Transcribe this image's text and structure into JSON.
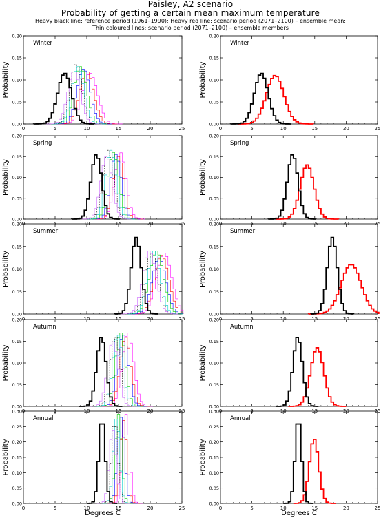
{
  "header": {
    "title_line1": "Paisley, A2 scenario",
    "title_line2": "Probability of getting a certain mean maximum temperature",
    "legend_line1": "Heavy black line: reference period (1961–1990); Heavy red line: scenario period (2071–2100) – ensemble mean;",
    "legend_line2": "Thin coloured lines: scenario period (2071–2100) – ensemble members"
  },
  "colors": {
    "reference": "#000000",
    "scenario_mean": "#ff0000",
    "members": [
      "#ff00ff",
      "#ff0000",
      "#0000ff",
      "#00cc00",
      "#00cccc",
      "#000000",
      "#cc66ff"
    ]
  },
  "x_axis": {
    "label": "Degrees C",
    "ticks": [
      0,
      5,
      10,
      15,
      20,
      25
    ],
    "range": [
      0,
      25
    ]
  },
  "y_axis": {
    "label": "Probability"
  },
  "chart_data": [
    {
      "type": "histogram",
      "season": "Winter",
      "column": "ensemble_members",
      "ylim": [
        0,
        0.2
      ],
      "yticks": [
        "0.00",
        "0.05",
        "0.10",
        "0.15",
        "0.20"
      ],
      "reference": {
        "mean": 6.5,
        "sd": 1.1,
        "peak": 0.115
      },
      "members": [
        {
          "mean": 10.5,
          "sd": 1.2,
          "peak": 0.115
        },
        {
          "mean": 10.0,
          "sd": 1.1,
          "peak": 0.12
        },
        {
          "mean": 9.5,
          "sd": 1.05,
          "peak": 0.125
        },
        {
          "mean": 9.0,
          "sd": 1.0,
          "peak": 0.13
        },
        {
          "mean": 8.6,
          "sd": 0.95,
          "peak": 0.13
        },
        {
          "mean": 8.3,
          "sd": 0.95,
          "peak": 0.135
        },
        {
          "mean": 8.0,
          "sd": 1.0,
          "peak": 0.12
        }
      ]
    },
    {
      "type": "histogram",
      "season": "Winter",
      "column": "ensemble_mean",
      "ylim": [
        0,
        0.2
      ],
      "yticks": [
        "0.00",
        "0.05",
        "0.10",
        "0.15",
        "0.20"
      ],
      "reference": {
        "mean": 6.5,
        "sd": 1.1,
        "peak": 0.115
      },
      "scenario_mean": {
        "mean": 8.7,
        "sd": 1.4,
        "peak": 0.11
      }
    },
    {
      "type": "histogram",
      "season": "Spring",
      "column": "ensemble_members",
      "ylim": [
        0,
        0.2
      ],
      "yticks": [
        "0.00",
        "0.05",
        "0.10",
        "0.15",
        "0.20"
      ],
      "reference": {
        "mean": 11.5,
        "sd": 0.85,
        "peak": 0.155
      },
      "members": [
        {
          "mean": 15.3,
          "sd": 0.9,
          "peak": 0.16
        },
        {
          "mean": 15.0,
          "sd": 0.85,
          "peak": 0.15
        },
        {
          "mean": 14.6,
          "sd": 0.85,
          "peak": 0.155
        },
        {
          "mean": 14.2,
          "sd": 0.85,
          "peak": 0.16
        },
        {
          "mean": 13.8,
          "sd": 0.85,
          "peak": 0.165
        },
        {
          "mean": 13.4,
          "sd": 0.85,
          "peak": 0.165
        },
        {
          "mean": 13.1,
          "sd": 0.9,
          "peak": 0.15
        }
      ]
    },
    {
      "type": "histogram",
      "season": "Spring",
      "column": "ensemble_mean",
      "ylim": [
        0,
        0.2
      ],
      "yticks": [
        "0.00",
        "0.05",
        "0.10",
        "0.15",
        "0.20"
      ],
      "reference": {
        "mean": 11.5,
        "sd": 0.85,
        "peak": 0.155
      },
      "scenario_mean": {
        "mean": 13.8,
        "sd": 1.1,
        "peak": 0.13
      }
    },
    {
      "type": "histogram",
      "season": "Summer",
      "column": "ensemble_members",
      "ylim": [
        0,
        0.2
      ],
      "yticks": [
        "0.00",
        "0.05",
        "0.10",
        "0.15",
        "0.20"
      ],
      "reference": {
        "mean": 17.8,
        "sd": 0.8,
        "peak": 0.17
      },
      "members": [
        {
          "mean": 22.2,
          "sd": 1.2,
          "peak": 0.135
        },
        {
          "mean": 21.8,
          "sd": 1.15,
          "peak": 0.13
        },
        {
          "mean": 21.4,
          "sd": 1.1,
          "peak": 0.125
        },
        {
          "mean": 21.0,
          "sd": 1.1,
          "peak": 0.14
        },
        {
          "mean": 20.6,
          "sd": 1.0,
          "peak": 0.14
        },
        {
          "mean": 20.2,
          "sd": 1.0,
          "peak": 0.135
        },
        {
          "mean": 19.9,
          "sd": 1.05,
          "peak": 0.14
        }
      ]
    },
    {
      "type": "histogram",
      "season": "Summer",
      "column": "ensemble_mean",
      "ylim": [
        0,
        0.2
      ],
      "yticks": [
        "0.00",
        "0.05",
        "0.10",
        "0.15",
        "0.20"
      ],
      "reference": {
        "mean": 17.8,
        "sd": 0.8,
        "peak": 0.17
      },
      "scenario_mean": {
        "mean": 20.8,
        "sd": 1.6,
        "peak": 0.11
      }
    },
    {
      "type": "histogram",
      "season": "Autumn",
      "column": "ensemble_members",
      "ylim": [
        0,
        0.2
      ],
      "yticks": [
        "0.00",
        "0.05",
        "0.10",
        "0.15",
        "0.20"
      ],
      "reference": {
        "mean": 12.3,
        "sd": 0.75,
        "peak": 0.16
      },
      "members": [
        {
          "mean": 16.5,
          "sd": 0.9,
          "peak": 0.17
        },
        {
          "mean": 16.1,
          "sd": 0.85,
          "peak": 0.16
        },
        {
          "mean": 15.7,
          "sd": 0.85,
          "peak": 0.165
        },
        {
          "mean": 15.3,
          "sd": 0.8,
          "peak": 0.17
        },
        {
          "mean": 14.9,
          "sd": 0.8,
          "peak": 0.165
        },
        {
          "mean": 14.5,
          "sd": 0.8,
          "peak": 0.16
        },
        {
          "mean": 14.1,
          "sd": 0.85,
          "peak": 0.15
        }
      ]
    },
    {
      "type": "histogram",
      "season": "Autumn",
      "column": "ensemble_mean",
      "ylim": [
        0,
        0.2
      ],
      "yticks": [
        "0.00",
        "0.05",
        "0.10",
        "0.15",
        "0.20"
      ],
      "reference": {
        "mean": 12.3,
        "sd": 0.75,
        "peak": 0.16
      },
      "scenario_mean": {
        "mean": 15.4,
        "sd": 1.05,
        "peak": 0.135
      }
    },
    {
      "type": "histogram",
      "season": "Annual",
      "column": "ensemble_members",
      "ylim": [
        0,
        0.3
      ],
      "yticks": [
        "0.00",
        "0.05",
        "0.10",
        "0.15",
        "0.20",
        "0.25",
        "0.30"
      ],
      "reference": {
        "mean": 12.4,
        "sd": 0.5,
        "peak": 0.28
      },
      "members": [
        {
          "mean": 16.2,
          "sd": 0.55,
          "peak": 0.29
        },
        {
          "mean": 15.8,
          "sd": 0.55,
          "peak": 0.27
        },
        {
          "mean": 15.4,
          "sd": 0.55,
          "peak": 0.28
        },
        {
          "mean": 15.0,
          "sd": 0.5,
          "peak": 0.29
        },
        {
          "mean": 14.7,
          "sd": 0.5,
          "peak": 0.28
        },
        {
          "mean": 14.4,
          "sd": 0.5,
          "peak": 0.27
        },
        {
          "mean": 14.1,
          "sd": 0.55,
          "peak": 0.24
        }
      ]
    },
    {
      "type": "histogram",
      "season": "Annual",
      "column": "ensemble_mean",
      "ylim": [
        0,
        0.3
      ],
      "yticks": [
        "0.00",
        "0.05",
        "0.10",
        "0.15",
        "0.20",
        "0.25",
        "0.30"
      ],
      "reference": {
        "mean": 12.4,
        "sd": 0.5,
        "peak": 0.28
      },
      "scenario_mean": {
        "mean": 14.9,
        "sd": 0.75,
        "peak": 0.21
      }
    }
  ]
}
